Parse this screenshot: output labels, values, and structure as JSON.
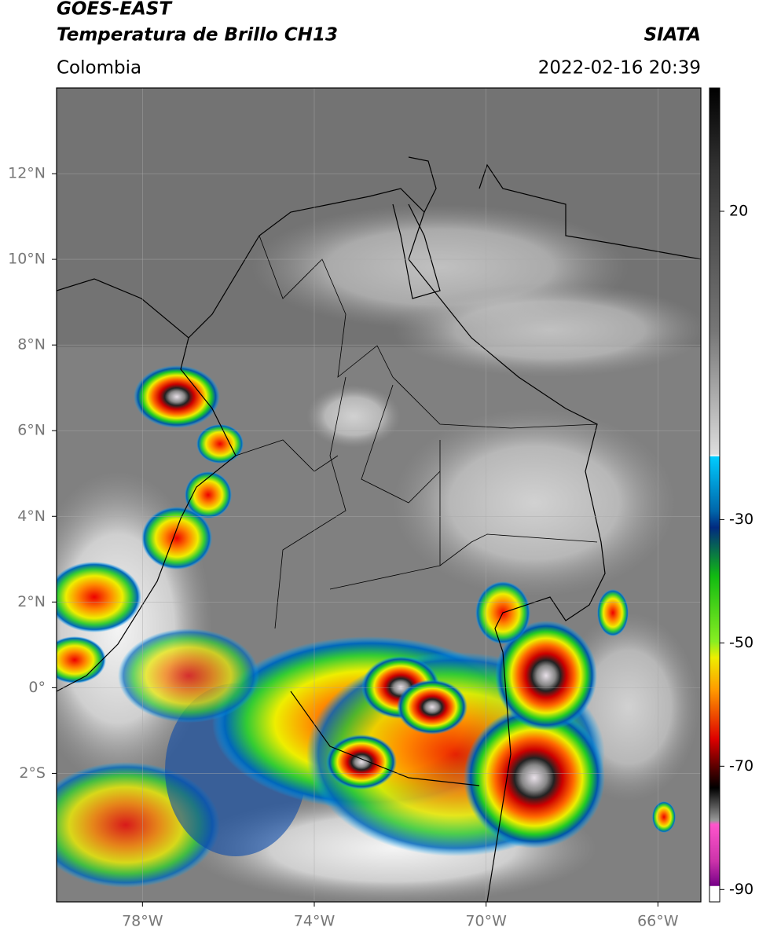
{
  "header": {
    "satellite": "GOES-EAST",
    "product": "Temperatura de Brillo CH13",
    "source": "SIATA",
    "region": "Colombia",
    "datetime": "2022-02-16 20:39"
  },
  "map": {
    "xlim": [
      -80,
      -65
    ],
    "ylim": [
      -5,
      14
    ],
    "xticks": [
      {
        "value": -78,
        "label": "78°W"
      },
      {
        "value": -74,
        "label": "74°W"
      },
      {
        "value": -70,
        "label": "70°W"
      },
      {
        "value": -66,
        "label": "66°W"
      }
    ],
    "yticks": [
      {
        "value": 12,
        "label": "12°N"
      },
      {
        "value": 10,
        "label": "10°N"
      },
      {
        "value": 8,
        "label": "8°N"
      },
      {
        "value": 6,
        "label": "6°N"
      },
      {
        "value": 4,
        "label": "4°N"
      },
      {
        "value": 2,
        "label": "2°N"
      },
      {
        "value": 0,
        "label": "0°"
      },
      {
        "value": -2,
        "label": "2°S"
      }
    ],
    "grid": true
  },
  "colorbar": {
    "lim": [
      -92,
      40
    ],
    "ticks": [
      20,
      -30,
      -50,
      -70,
      -90
    ]
  }
}
